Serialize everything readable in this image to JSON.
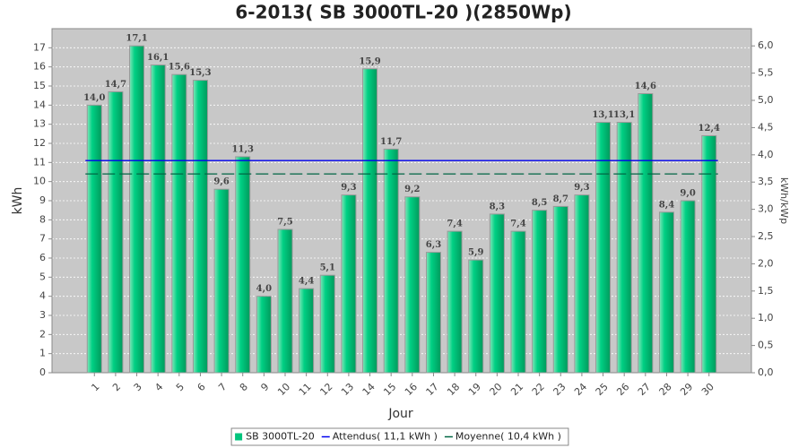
{
  "chart_data": {
    "type": "bar",
    "title": "6-2013( SB 3000TL-20 )(2850Wp)",
    "x_label": "Jour",
    "y_label": "kWh",
    "y2_label": "kWh/kWp",
    "categories": [
      "1",
      "2",
      "3",
      "4",
      "5",
      "6",
      "7",
      "8",
      "9",
      "10",
      "11",
      "12",
      "13",
      "14",
      "15",
      "16",
      "17",
      "18",
      "19",
      "20",
      "21",
      "22",
      "23",
      "24",
      "25",
      "26",
      "27",
      "28",
      "29",
      "30"
    ],
    "series": [
      {
        "name": "SB 3000TL-20",
        "color": "#00c47c",
        "values": [
          14.0,
          14.7,
          17.1,
          16.1,
          15.6,
          15.3,
          9.6,
          11.3,
          4.0,
          7.5,
          4.4,
          5.1,
          9.3,
          15.9,
          11.7,
          9.2,
          6.3,
          7.4,
          5.9,
          8.3,
          7.4,
          8.5,
          8.7,
          9.3,
          13.1,
          13.1,
          14.6,
          8.4,
          9.0,
          12.4
        ],
        "value_labels": [
          "14,0",
          "14,7",
          "17,1",
          "16,1",
          "15,6",
          "15,3",
          "9,6",
          "11,3",
          "4,0",
          "7,5",
          "4,4",
          "5,1",
          "9,3",
          "15,9",
          "11,7",
          "9,2",
          "6,3",
          "7,4",
          "5,9",
          "8,3",
          "7,4",
          "8,5",
          "8,7",
          "9,3",
          "13,1",
          "13,1",
          "14,6",
          "8,4",
          "9,0",
          "12,4"
        ]
      }
    ],
    "reference_lines": [
      {
        "name": "Attendus( 11,1 kWh )",
        "value": 11.1,
        "color": "#0000ee",
        "dashed": false
      },
      {
        "name": "Moyenne( 10,4 kWh )",
        "value": 10.4,
        "color": "#006644",
        "dashed": true
      }
    ],
    "ylim": [
      0,
      18
    ],
    "yticks": [
      0,
      1,
      2,
      3,
      4,
      5,
      6,
      7,
      8,
      9,
      10,
      11,
      12,
      13,
      14,
      15,
      16,
      17
    ],
    "y2lim": [
      0,
      6.316
    ],
    "y2ticks": [
      {
        "value": 0,
        "label": "0,0"
      },
      {
        "value": 0.5,
        "label": "0,5"
      },
      {
        "value": 1,
        "label": "1,0"
      },
      {
        "value": 1.5,
        "label": "1,5"
      },
      {
        "value": 2,
        "label": "2,0"
      },
      {
        "value": 2.5,
        "label": "2,5"
      },
      {
        "value": 3,
        "label": "3,0"
      },
      {
        "value": 3.5,
        "label": "3,5"
      },
      {
        "value": 4,
        "label": "4,0"
      },
      {
        "value": 4.5,
        "label": "4,5"
      },
      {
        "value": 5,
        "label": "5,0"
      },
      {
        "value": 5.5,
        "label": "5,5"
      },
      {
        "value": 6,
        "label": "6,0"
      }
    ],
    "grid": true,
    "legend": "bottom"
  }
}
